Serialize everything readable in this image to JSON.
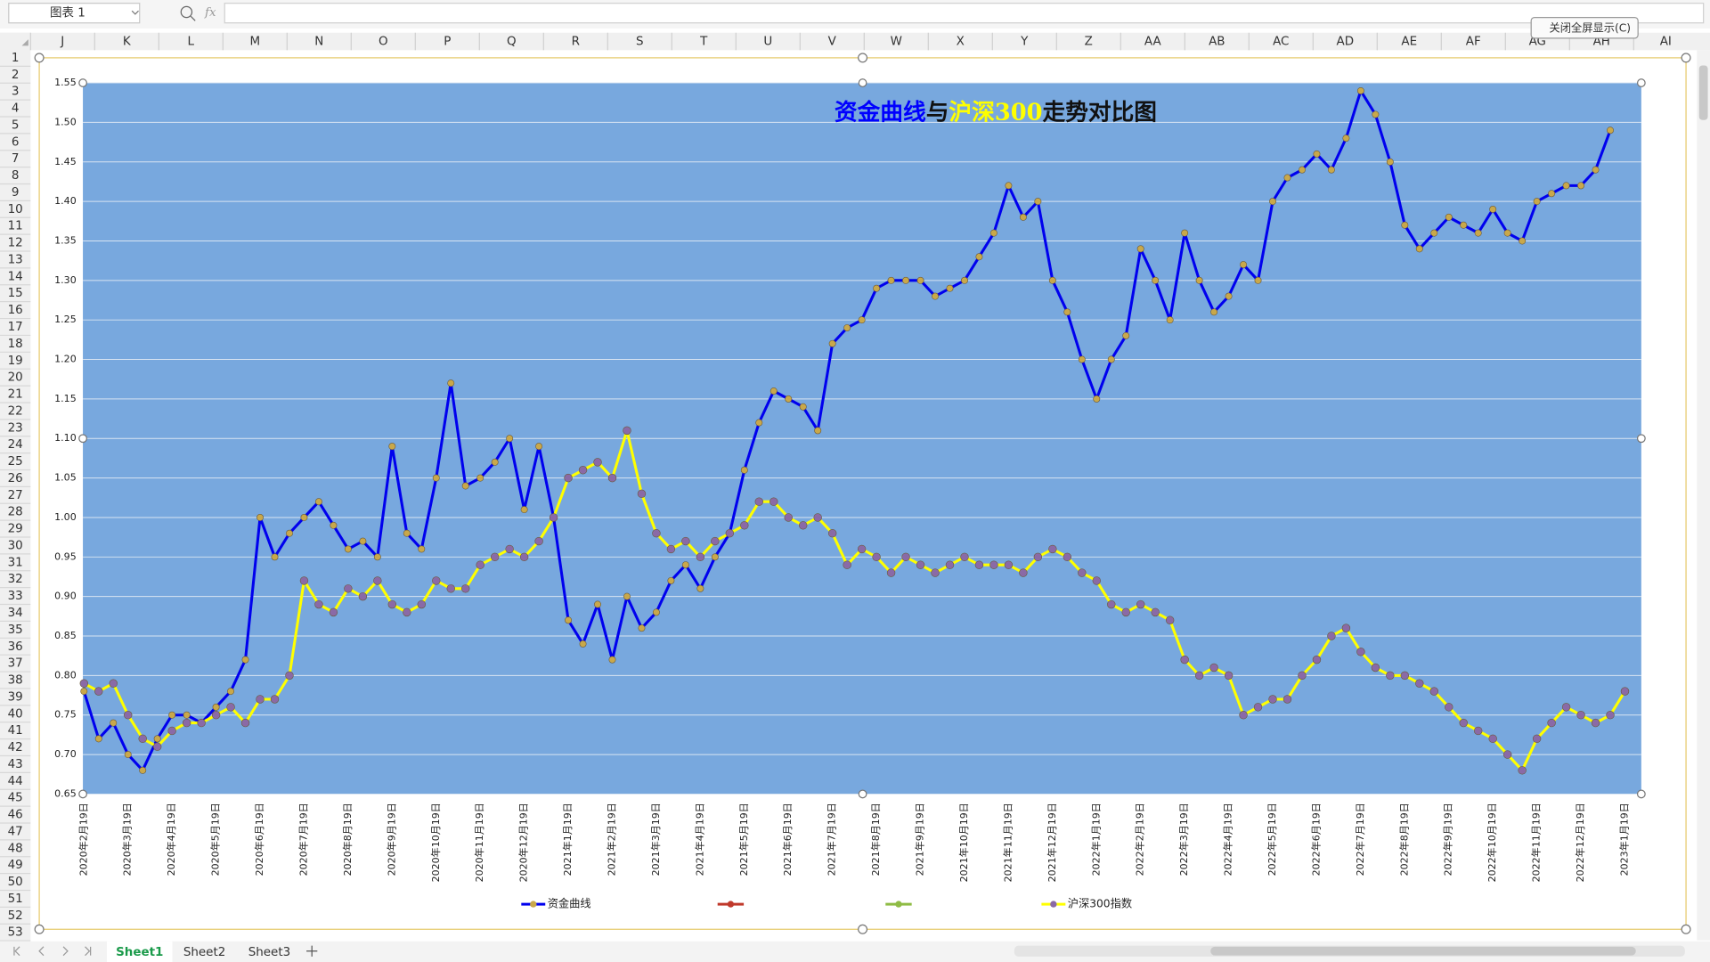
{
  "ui": {
    "name_box": "图表 1",
    "fx": "fx",
    "close_button": "关闭全屏显示(C)",
    "sheets": [
      "Sheet1",
      "Sheet2",
      "Sheet3"
    ]
  },
  "sheet": {
    "columns": [
      "J",
      "K",
      "L",
      "M",
      "N",
      "O",
      "P",
      "Q",
      "R",
      "S",
      "T",
      "U",
      "V",
      "W",
      "X",
      "Y",
      "Z",
      "AA",
      "AB",
      "AC",
      "AD",
      "AE",
      "AF",
      "AG",
      "AH",
      "AI"
    ],
    "rows": [
      1,
      2,
      3,
      4,
      5,
      6,
      7,
      8,
      9,
      10,
      11,
      12,
      13,
      14,
      15,
      16,
      17,
      18,
      19,
      20,
      21,
      22,
      23,
      24,
      25,
      26,
      27,
      28,
      29,
      30,
      31,
      32,
      33,
      34,
      35,
      36,
      37,
      38,
      39,
      40,
      41,
      42,
      43,
      44,
      45,
      46,
      47,
      48,
      49,
      50,
      51,
      52,
      53
    ]
  },
  "chart_data": {
    "type": "line",
    "title_parts": [
      {
        "text": "资金曲线",
        "color": "#0000ff"
      },
      {
        "text": "与",
        "color": "#111111"
      },
      {
        "text": "沪深300",
        "color": "#ffff00"
      },
      {
        "text": "走势对比图",
        "color": "#111111"
      }
    ],
    "plot_background": "#78a8de",
    "grid": true,
    "grid_color": "#d8e4f2",
    "categories": [
      "2020年2月19日",
      null,
      null,
      "2020年3月19日",
      null,
      null,
      "2020年4月19日",
      null,
      null,
      "2020年5月19日",
      null,
      null,
      "2020年6月19日",
      null,
      null,
      "2020年7月19日",
      null,
      null,
      "2020年8月19日",
      null,
      null,
      "2020年9月19日",
      null,
      null,
      "2020年10月19日",
      null,
      null,
      "2020年11月19日",
      null,
      null,
      "2020年12月19日",
      null,
      null,
      "2021年1月19日",
      null,
      null,
      "2021年2月19日",
      null,
      null,
      "2021年3月19日",
      null,
      null,
      "2021年4月19日",
      null,
      null,
      "2021年5月19日",
      null,
      null,
      "2021年6月19日",
      null,
      null,
      "2021年7月19日",
      null,
      null,
      "2021年8月19日",
      null,
      null,
      "2021年9月19日",
      null,
      null,
      "2021年10月19日",
      null,
      null,
      "2021年11月19日",
      null,
      null,
      "2021年12月19日",
      null,
      null,
      "2022年1月19日",
      null,
      null,
      "2022年2月19日",
      null,
      null,
      "2022年3月19日",
      null,
      null,
      "2022年4月19日",
      null,
      null,
      "2022年5月19日",
      null,
      null,
      "2022年6月19日",
      null,
      null,
      "2022年7月19日",
      null,
      null,
      "2022年8月19日",
      null,
      null,
      "2022年9月19日",
      null,
      null,
      "2022年10月19日",
      null,
      null,
      "2022年11月19日",
      null,
      null,
      "2022年12月19日",
      null,
      null,
      "2023年1月19日"
    ],
    "series": [
      {
        "name": "资金曲线",
        "color": "#0000ee",
        "marker_color": "#c9a84a",
        "values": [
          0.78,
          0.72,
          0.74,
          0.7,
          0.68,
          0.72,
          0.75,
          0.75,
          0.74,
          0.76,
          0.78,
          0.82,
          1.0,
          0.95,
          0.98,
          1.0,
          1.02,
          0.99,
          0.96,
          0.97,
          0.95,
          1.09,
          0.98,
          0.96,
          1.05,
          1.17,
          1.04,
          1.05,
          1.07,
          1.1,
          1.01,
          1.09,
          1.0,
          0.87,
          0.84,
          0.89,
          0.82,
          0.9,
          0.86,
          0.88,
          0.92,
          0.94,
          0.91,
          0.95,
          0.98,
          1.06,
          1.12,
          1.16,
          1.15,
          1.14,
          1.11,
          1.22,
          1.24,
          1.25,
          1.29,
          1.3,
          1.3,
          1.3,
          1.28,
          1.29,
          1.3,
          1.33,
          1.36,
          1.42,
          1.38,
          1.4,
          1.3,
          1.26,
          1.2,
          1.15,
          1.2,
          1.23,
          1.34,
          1.3,
          1.25,
          1.36,
          1.3,
          1.26,
          1.28,
          1.32,
          1.3,
          1.4,
          1.43,
          1.44,
          1.46,
          1.44,
          1.48,
          1.54,
          1.51,
          1.45,
          1.37,
          1.34,
          1.36,
          1.38,
          1.37,
          1.36,
          1.39,
          1.36,
          1.35,
          1.4,
          1.41,
          1.42,
          1.42,
          1.44,
          1.49,
          null
        ]
      },
      {
        "name": "沪深300指数",
        "color": "#ffff00",
        "marker_color": "#8a6aa6",
        "values": [
          0.79,
          0.78,
          0.79,
          0.75,
          0.72,
          0.71,
          0.73,
          0.74,
          0.74,
          0.75,
          0.76,
          0.74,
          0.77,
          0.77,
          0.8,
          0.92,
          0.89,
          0.88,
          0.91,
          0.9,
          0.92,
          0.89,
          0.88,
          0.89,
          0.92,
          0.91,
          0.91,
          0.94,
          0.95,
          0.96,
          0.95,
          0.97,
          1.0,
          1.05,
          1.06,
          1.07,
          1.05,
          1.11,
          1.03,
          0.98,
          0.96,
          0.97,
          0.95,
          0.97,
          0.98,
          0.99,
          1.02,
          1.02,
          1.0,
          0.99,
          1.0,
          0.98,
          0.94,
          0.96,
          0.95,
          0.93,
          0.95,
          0.94,
          0.93,
          0.94,
          0.95,
          0.94,
          0.94,
          0.94,
          0.93,
          0.95,
          0.96,
          0.95,
          0.93,
          0.92,
          0.89,
          0.88,
          0.89,
          0.88,
          0.87,
          0.82,
          0.8,
          0.81,
          0.8,
          0.75,
          0.76,
          0.77,
          0.77,
          0.8,
          0.82,
          0.85,
          0.86,
          0.83,
          0.81,
          0.8,
          0.8,
          0.79,
          0.78,
          0.76,
          0.74,
          0.73,
          0.72,
          0.7,
          0.68,
          0.72,
          0.74,
          0.76,
          0.75,
          0.74,
          0.75,
          0.78
        ]
      }
    ],
    "ylim": [
      0.65,
      1.55
    ],
    "yticks": [
      0.65,
      {
        "value": 0.7,
        "label": "0.70"
      },
      0.75,
      {
        "value": 0.8,
        "label": "0.80"
      },
      0.85,
      {
        "value": 0.9,
        "label": "0.90"
      },
      0.95,
      {
        "value": 1.0,
        "label": "1.00"
      },
      1.05,
      {
        "value": 1.1,
        "label": "1.10"
      },
      1.15,
      {
        "value": 1.2,
        "label": "1.20"
      },
      1.25,
      {
        "value": 1.3,
        "label": "1.30"
      },
      1.35,
      {
        "value": 1.4,
        "label": "1.40"
      },
      1.45,
      {
        "value": 1.5,
        "label": "1.50"
      },
      1.55
    ]
  }
}
